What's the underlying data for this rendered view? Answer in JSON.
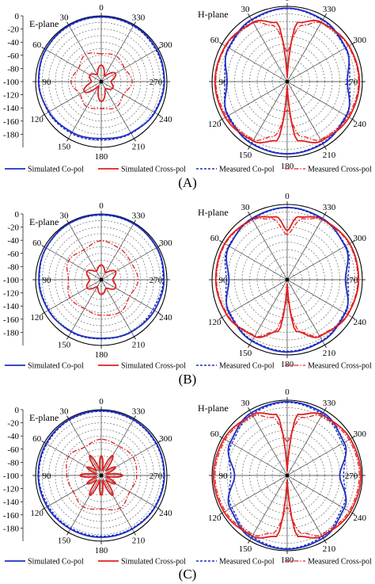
{
  "figure": {
    "captions": [
      "(A)",
      "(B)",
      "(C)"
    ],
    "colors": {
      "simulated_co": "#1f2fbf",
      "simulated_cross": "#e02020",
      "measured_co": "#1f2fbf",
      "measured_cross": "#e02020",
      "grid": "#555555",
      "axis": "#000000"
    }
  },
  "chart_data": [
    {
      "type": "polar",
      "panel": "A",
      "plane": "E-plane",
      "r_axis": {
        "ticks": [
          0,
          -20,
          -40,
          -60,
          -80,
          -100,
          -120,
          -140,
          -160,
          -180,
          -200
        ],
        "range": [
          -200,
          0
        ]
      },
      "angle_ticks": [
        0,
        330,
        300,
        270,
        240,
        210,
        180,
        150,
        120,
        90,
        60,
        30
      ],
      "series": [
        {
          "name": "Simulated Co-pol",
          "style": "solid-blue",
          "angles": [
            0,
            30,
            60,
            90,
            120,
            150,
            180,
            210,
            240,
            270,
            300,
            330
          ],
          "values": [
            -3,
            -3,
            -5,
            -9,
            -16,
            -22,
            -27,
            -20,
            -12,
            -8,
            -5,
            -3
          ]
        },
        {
          "name": "Simulated Cross-pol",
          "style": "solid-red",
          "angles": [
            0,
            30,
            60,
            90,
            120,
            150,
            180,
            210,
            240,
            270,
            300,
            330
          ],
          "values": [
            -150,
            -175,
            -160,
            -170,
            -140,
            -185,
            -140,
            -175,
            -160,
            -170,
            -150,
            -180
          ]
        },
        {
          "name": "Measured Co-pol",
          "style": "dash-blue",
          "angles": [
            0,
            30,
            60,
            90,
            120,
            150,
            180,
            210,
            240,
            270,
            300,
            330
          ],
          "values": [
            -4,
            -5,
            -6,
            -11,
            -14,
            -18,
            -23,
            -18,
            -14,
            -10,
            -8,
            -5
          ]
        },
        {
          "name": "Measured Cross-pol",
          "style": "dashdot-red",
          "angles": [
            0,
            30,
            60,
            90,
            120,
            150,
            180,
            210,
            240,
            270,
            300,
            330
          ],
          "values": [
            -115,
            -105,
            -120,
            -108,
            -125,
            -112,
            -118,
            -110,
            -122,
            -106,
            -118,
            -110
          ]
        }
      ]
    },
    {
      "type": "polar",
      "panel": "A",
      "plane": "H-plane",
      "r_axis": {
        "ticks": [
          0,
          -20,
          -40,
          -60,
          -80,
          -100,
          -120,
          -140,
          -160,
          -180,
          -200
        ],
        "range": [
          -200,
          0
        ]
      },
      "angle_ticks": [
        0,
        330,
        300,
        270,
        240,
        210,
        180,
        150,
        120,
        90,
        60,
        30
      ],
      "series": [
        {
          "name": "Simulated Co-pol",
          "style": "solid-blue",
          "angles": [
            0,
            30,
            60,
            90,
            120,
            150,
            180,
            210,
            240,
            270,
            300,
            330
          ],
          "values": [
            -5,
            -10,
            -20,
            -40,
            -18,
            -10,
            -8,
            -10,
            -18,
            -40,
            -20,
            -10
          ]
        },
        {
          "name": "Simulated Cross-pol",
          "style": "solid-red",
          "angles": [
            0,
            10,
            30,
            60,
            90,
            120,
            150,
            170,
            180,
            190,
            210,
            240,
            270,
            300,
            330,
            350
          ],
          "values": [
            -190,
            -40,
            -18,
            -10,
            -8,
            -10,
            -18,
            -40,
            -190,
            -40,
            -18,
            -10,
            -8,
            -10,
            -18,
            -40
          ]
        },
        {
          "name": "Measured Co-pol",
          "style": "dash-blue",
          "angles": [
            0,
            30,
            60,
            90,
            120,
            150,
            180,
            210,
            240,
            270,
            300,
            330
          ],
          "values": [
            -6,
            -12,
            -22,
            -34,
            -20,
            -12,
            -9,
            -12,
            -20,
            -34,
            -22,
            -12
          ]
        },
        {
          "name": "Measured Cross-pol",
          "style": "dashdot-red",
          "angles": [
            0,
            15,
            30,
            60,
            90,
            120,
            150,
            165,
            180,
            195,
            210,
            240,
            270,
            300,
            330,
            345
          ],
          "values": [
            -120,
            -45,
            -20,
            -12,
            -10,
            -14,
            -22,
            -48,
            -125,
            -48,
            -22,
            -14,
            -10,
            -12,
            -20,
            -45
          ]
        }
      ]
    },
    {
      "type": "polar",
      "panel": "B",
      "plane": "E-plane",
      "r_axis": {
        "ticks": [
          0,
          -20,
          -40,
          -60,
          -80,
          -100,
          -120,
          -140,
          -160,
          -180,
          -200
        ],
        "range": [
          -200,
          0
        ]
      },
      "angle_ticks": [
        0,
        330,
        300,
        270,
        240,
        210,
        180,
        150,
        120,
        90,
        60,
        30
      ],
      "series": [
        {
          "name": "Simulated Co-pol",
          "style": "solid-blue",
          "angles": [
            0,
            30,
            60,
            90,
            120,
            150,
            180,
            210,
            240,
            270,
            300,
            330
          ],
          "values": [
            -2,
            -3,
            -6,
            -10,
            -14,
            -18,
            -22,
            -17,
            -13,
            -9,
            -5,
            -3
          ]
        },
        {
          "name": "Simulated Cross-pol",
          "style": "solid-red",
          "angles": [
            0,
            30,
            60,
            90,
            120,
            150,
            180,
            210,
            240,
            270,
            300,
            330
          ],
          "values": [
            -155,
            -170,
            -150,
            -165,
            -150,
            -175,
            -155,
            -170,
            -150,
            -165,
            -150,
            -175
          ]
        },
        {
          "name": "Measured Co-pol",
          "style": "dash-blue",
          "angles": [
            0,
            30,
            60,
            90,
            120,
            150,
            180,
            210,
            240,
            270,
            300,
            330
          ],
          "values": [
            -4,
            -4,
            -7,
            -12,
            -16,
            -16,
            -20,
            -16,
            -18,
            -12,
            -6,
            -4
          ]
        },
        {
          "name": "Measured Cross-pol",
          "style": "dashdot-red",
          "angles": [
            0,
            30,
            60,
            90,
            120,
            150,
            180,
            210,
            240,
            270,
            300,
            330
          ],
          "values": [
            -82,
            -95,
            -85,
            -100,
            -90,
            -98,
            -92,
            -86,
            -100,
            -88,
            -95,
            -90
          ]
        }
      ]
    },
    {
      "type": "polar",
      "panel": "B",
      "plane": "H-plane",
      "r_axis": {
        "ticks": [
          0,
          -20,
          -40,
          -60,
          -80,
          -100,
          -120,
          -140,
          -160,
          -180,
          -200
        ],
        "range": [
          -200,
          0
        ]
      },
      "angle_ticks": [
        0,
        330,
        300,
        270,
        240,
        210,
        180,
        150,
        120,
        90,
        60,
        30
      ],
      "series": [
        {
          "name": "Simulated Co-pol",
          "style": "solid-blue",
          "angles": [
            0,
            30,
            60,
            90,
            120,
            150,
            180,
            210,
            240,
            270,
            300,
            330
          ],
          "values": [
            -8,
            -12,
            -22,
            -45,
            -22,
            -12,
            -8,
            -12,
            -22,
            -45,
            -22,
            -12
          ]
        },
        {
          "name": "Simulated Cross-pol",
          "style": "solid-red",
          "angles": [
            0,
            10,
            30,
            60,
            90,
            120,
            150,
            170,
            180,
            190,
            210,
            240,
            270,
            300,
            330,
            350
          ],
          "values": [
            -70,
            -30,
            -14,
            -8,
            -10,
            -14,
            -26,
            -60,
            -190,
            -60,
            -26,
            -14,
            -10,
            -8,
            -14,
            -30
          ]
        },
        {
          "name": "Measured Co-pol",
          "style": "dash-blue",
          "angles": [
            0,
            30,
            60,
            90,
            120,
            150,
            180,
            210,
            240,
            270,
            300,
            330
          ],
          "values": [
            -9,
            -14,
            -20,
            -38,
            -24,
            -14,
            -10,
            -14,
            -24,
            -38,
            -20,
            -14
          ]
        },
        {
          "name": "Measured Cross-pol",
          "style": "dashdot-red",
          "angles": [
            0,
            15,
            30,
            60,
            90,
            120,
            150,
            165,
            180,
            195,
            210,
            240,
            270,
            300,
            330,
            345
          ],
          "values": [
            -80,
            -32,
            -16,
            -10,
            -12,
            -16,
            -28,
            -55,
            -150,
            -55,
            -28,
            -16,
            -12,
            -10,
            -16,
            -32
          ]
        }
      ]
    },
    {
      "type": "polar",
      "panel": "C",
      "plane": "E-plane",
      "r_axis": {
        "ticks": [
          0,
          -20,
          -40,
          -60,
          -80,
          -100,
          -120,
          -140,
          -160,
          -180,
          -200
        ],
        "range": [
          -200,
          0
        ]
      },
      "angle_ticks": [
        0,
        330,
        300,
        270,
        240,
        210,
        180,
        150,
        120,
        90,
        60,
        30
      ],
      "series": [
        {
          "name": "Simulated Co-pol",
          "style": "solid-blue",
          "angles": [
            0,
            30,
            60,
            90,
            120,
            150,
            180,
            210,
            240,
            270,
            300,
            330
          ],
          "values": [
            -3,
            -4,
            -6,
            -8,
            -10,
            -12,
            -12,
            -12,
            -10,
            -8,
            -6,
            -4
          ]
        },
        {
          "name": "Simulated Cross-pol",
          "style": "solid-red",
          "angles": [
            0,
            15,
            30,
            45,
            60,
            75,
            90,
            105,
            120,
            135,
            150,
            165,
            180,
            195,
            210,
            225,
            240,
            255,
            270,
            285,
            300,
            315,
            330,
            345
          ],
          "values": [
            -140,
            -185,
            -130,
            -180,
            -150,
            -185,
            -135,
            -185,
            -150,
            -180,
            -130,
            -185,
            -140,
            -185,
            -130,
            -180,
            -150,
            -185,
            -135,
            -185,
            -150,
            -180,
            -130,
            -185
          ]
        },
        {
          "name": "Measured Co-pol",
          "style": "dash-blue",
          "angles": [
            0,
            30,
            60,
            90,
            120,
            150,
            180,
            210,
            240,
            270,
            300,
            330
          ],
          "values": [
            -5,
            -6,
            -9,
            -10,
            -14,
            -15,
            -15,
            -14,
            -12,
            -10,
            -8,
            -6
          ]
        },
        {
          "name": "Measured Cross-pol",
          "style": "dashdot-red",
          "angles": [
            0,
            30,
            60,
            90,
            120,
            150,
            180,
            210,
            240,
            270,
            300,
            330
          ],
          "values": [
            -90,
            -100,
            -85,
            -95,
            -102,
            -90,
            -98,
            -86,
            -100,
            -92,
            -88,
            -96
          ]
        }
      ]
    },
    {
      "type": "polar",
      "panel": "C",
      "plane": "H-plane",
      "r_axis": {
        "ticks": [
          0,
          -20,
          -40,
          -60,
          -80,
          -100,
          -120,
          -140,
          -160,
          -180,
          -200
        ],
        "range": [
          -200,
          0
        ]
      },
      "angle_ticks": [
        0,
        330,
        300,
        270,
        240,
        210,
        180,
        150,
        120,
        90,
        60,
        30
      ],
      "series": [
        {
          "name": "Simulated Co-pol",
          "style": "solid-blue",
          "angles": [
            0,
            30,
            60,
            90,
            120,
            150,
            180,
            210,
            240,
            270,
            300,
            330
          ],
          "values": [
            -4,
            -8,
            -25,
            -60,
            -25,
            -8,
            -4,
            -8,
            -25,
            -60,
            -25,
            -8
          ]
        },
        {
          "name": "Simulated Cross-pol",
          "style": "solid-red",
          "angles": [
            0,
            10,
            30,
            60,
            90,
            120,
            150,
            170,
            180,
            190,
            210,
            240,
            270,
            300,
            330,
            350
          ],
          "values": [
            -190,
            -35,
            -14,
            -6,
            -4,
            -6,
            -14,
            -35,
            -190,
            -35,
            -14,
            -6,
            -4,
            -6,
            -14,
            -35
          ]
        },
        {
          "name": "Measured Co-pol",
          "style": "dash-blue",
          "angles": [
            0,
            30,
            60,
            90,
            120,
            150,
            180,
            210,
            240,
            270,
            300,
            330
          ],
          "values": [
            -6,
            -12,
            -30,
            -50,
            -30,
            -12,
            -6,
            -12,
            -30,
            -50,
            -30,
            -12
          ]
        },
        {
          "name": "Measured Cross-pol",
          "style": "dashdot-red",
          "angles": [
            0,
            15,
            30,
            60,
            90,
            120,
            150,
            165,
            180,
            195,
            210,
            240,
            270,
            300,
            330,
            345
          ],
          "values": [
            -110,
            -40,
            -18,
            -10,
            -8,
            -10,
            -18,
            -40,
            -115,
            -40,
            -18,
            -10,
            -8,
            -10,
            -18,
            -40
          ]
        }
      ]
    }
  ]
}
